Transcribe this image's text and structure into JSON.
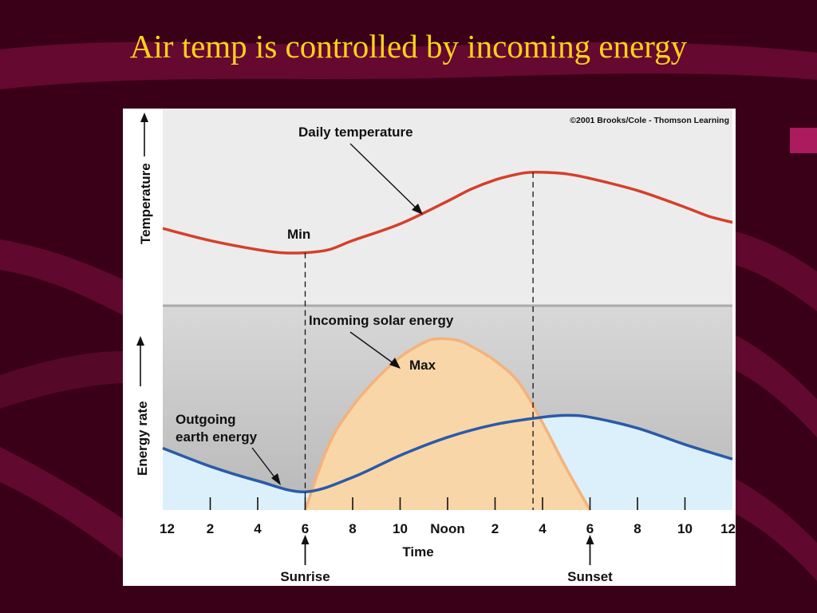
{
  "slide": {
    "title": "Air temp is controlled by incoming energy",
    "colors": {
      "background": "#3a0018",
      "title": "#ffd21a"
    }
  },
  "chart_data": {
    "type": "line",
    "copyright": "©2001 Brooks/Cole - Thomson Learning",
    "xlabel": "Time",
    "x_ticks": [
      "12",
      "2",
      "4",
      "6",
      "8",
      "10",
      "Noon",
      "2",
      "4",
      "6",
      "8",
      "10",
      "12"
    ],
    "x_tick_hours": [
      0,
      2,
      4,
      6,
      8,
      10,
      12,
      14,
      16,
      18,
      20,
      22,
      24
    ],
    "xlim": [
      0,
      24
    ],
    "markers": [
      {
        "label": "Sunrise",
        "hour": 6
      },
      {
        "label": "Sunset",
        "hour": 18
      }
    ],
    "panels": [
      {
        "ylabel": "Temperature",
        "ylim": [
          0,
          100
        ],
        "annotations": [
          "Daily temperature",
          "Min"
        ],
        "series": [
          {
            "name": "Daily temperature",
            "color": "#d4402a",
            "x": [
              0,
              2,
              4,
              5,
              6,
              7,
              8,
              10,
              12,
              13,
              14,
              15,
              15.5,
              16,
              17,
              18,
              20,
              22,
              23,
              24
            ],
            "y": [
              42,
              34,
              28,
              26,
              26,
              28,
              34,
              45,
              60,
              68,
              74,
              78,
              79,
              79,
              78,
              75,
              67,
              56,
              50,
              46
            ]
          }
        ]
      },
      {
        "ylabel": "Energy rate",
        "ylim": [
          0,
          100
        ],
        "annotations": [
          "Incoming solar energy",
          "Max",
          "Outgoing earth energy"
        ],
        "series": [
          {
            "name": "Incoming solar energy",
            "color": "#f5b27a",
            "fill": "#f9d6a8",
            "x": [
              6,
              7,
              8,
              9,
              10,
              11,
              11.5,
              12,
              12.5,
              13,
              14,
              15,
              16,
              17,
              18
            ],
            "y": [
              0,
              36,
              57,
              72,
              84,
              92,
              94,
              94,
              93,
              90,
              82,
              70,
              48,
              23,
              0
            ]
          },
          {
            "name": "Outgoing earth energy",
            "color": "#2a5aa8",
            "fill": "#dcf0fb",
            "x": [
              0,
              2,
              4,
              6,
              8,
              10,
              12,
              14,
              16,
              17,
              18,
              20,
              22,
              24
            ],
            "y": [
              34,
              24,
              16,
              10,
              18,
              30,
              40,
              47,
              51,
              52,
              51,
              45,
              36,
              28
            ]
          }
        ]
      }
    ],
    "crossing_hours": [
      6,
      15.6
    ]
  }
}
